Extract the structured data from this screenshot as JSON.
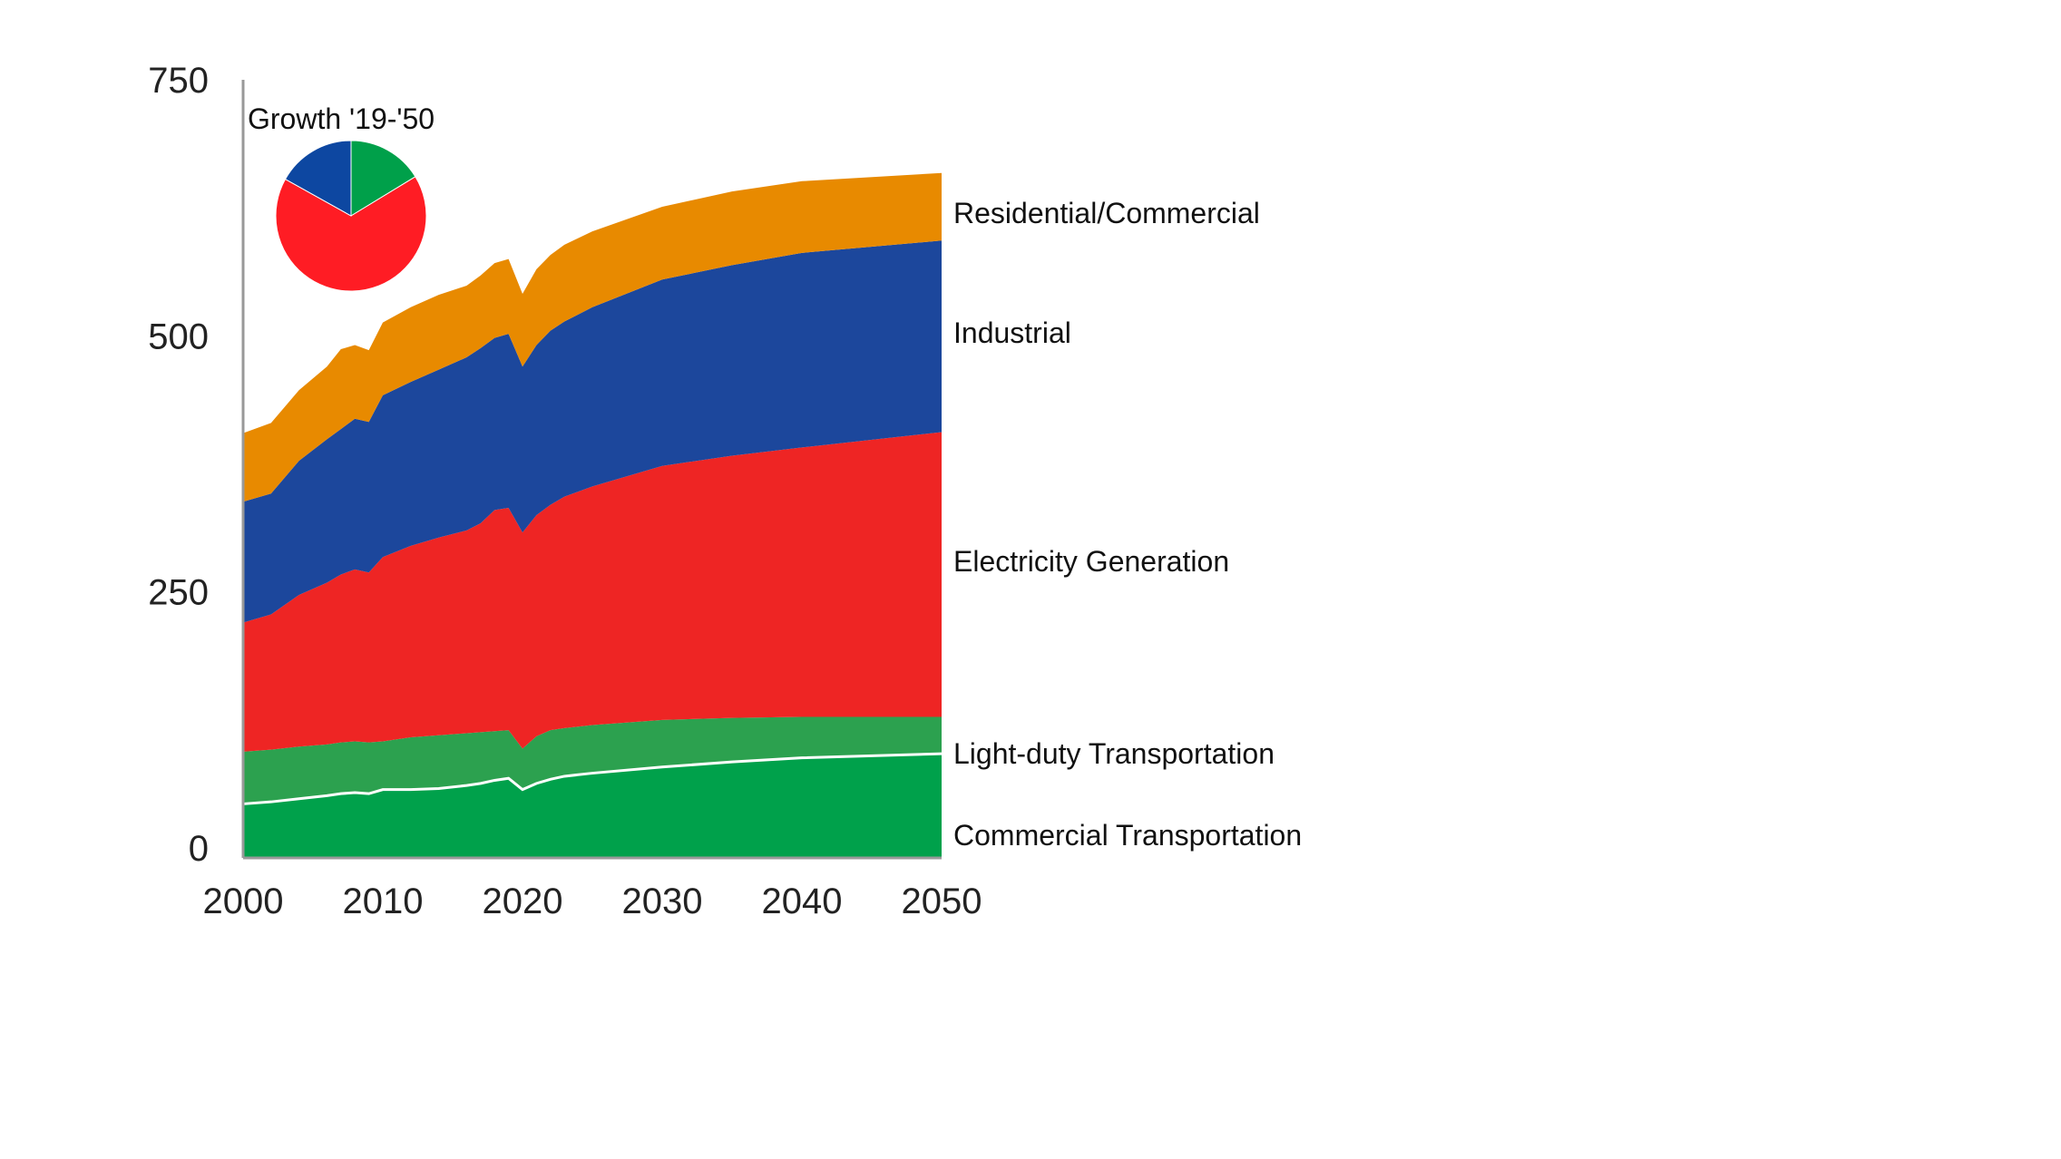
{
  "chart_data": {
    "type": "area",
    "stacked": true,
    "title": "",
    "xlabel": "",
    "ylabel": "",
    "xlim": [
      2000,
      2050
    ],
    "ylim": [
      0,
      750
    ],
    "x_ticks": [
      "2000",
      "2010",
      "2020",
      "2030",
      "2040",
      "2050"
    ],
    "y_ticks": [
      "0",
      "250",
      "500",
      "750"
    ],
    "grid": false,
    "legend": "right (inline labels)",
    "x": [
      2000,
      2002,
      2004,
      2006,
      2007,
      2008,
      2009,
      2010,
      2012,
      2014,
      2016,
      2017,
      2018,
      2019,
      2020,
      2021,
      2022,
      2023,
      2025,
      2030,
      2035,
      2040,
      2050
    ],
    "series": [
      {
        "name": "Commercial Transportation",
        "color": "#00a14b",
        "values": [
          43,
          45,
          48,
          51,
          53,
          54,
          53,
          57,
          57,
          58,
          61,
          63,
          66,
          68,
          57,
          63,
          67,
          70,
          73,
          79,
          84,
          88,
          92
        ]
      },
      {
        "name": "Light-duty Transportation",
        "color": "#2ca14f",
        "values": [
          51,
          51,
          51,
          50,
          50,
          50,
          50,
          47,
          51,
          52,
          51,
          50,
          48,
          47,
          40,
          46,
          48,
          47,
          47,
          46,
          43,
          40,
          36
        ]
      },
      {
        "name": "Electricity Generation",
        "color": "#ee2524",
        "values": [
          126,
          132,
          148,
          158,
          164,
          168,
          166,
          180,
          187,
          193,
          198,
          204,
          216,
          217,
          211,
          216,
          220,
          226,
          233,
          248,
          256,
          263,
          278
        ]
      },
      {
        "name": "Industrial",
        "color": "#1c479c",
        "values": [
          118,
          118,
          131,
          140,
          142,
          147,
          147,
          158,
          160,
          164,
          169,
          171,
          168,
          170,
          162,
          166,
          170,
          171,
          175,
          182,
          186,
          190,
          187
        ]
      },
      {
        "name": "Residential/Commercial",
        "color": "#e88a00",
        "values": [
          67,
          69,
          69,
          71,
          78,
          72,
          70,
          71,
          73,
          73,
          70,
          71,
          73,
          73,
          71,
          74,
          74,
          75,
          74,
          71,
          72,
          70,
          66
        ]
      }
    ],
    "inset_pie": {
      "title": "Growth '19-'50",
      "slices": [
        {
          "name": "Transportation",
          "value": 16.3,
          "color": "#00a04a"
        },
        {
          "name": "Electricity Generation",
          "value": 66.8,
          "color": "#ff1c24"
        },
        {
          "name": "Industrial",
          "value": 16.9,
          "color": "#0d47a1"
        }
      ]
    }
  }
}
